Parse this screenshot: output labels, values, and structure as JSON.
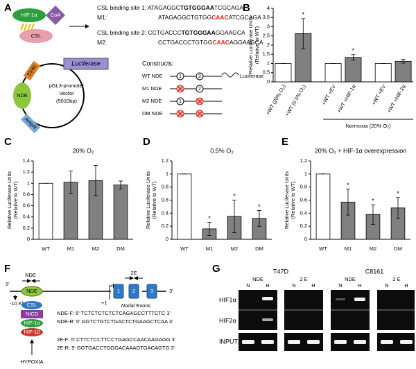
{
  "panel_a": {
    "label": "A",
    "hif": "HIF-1α",
    "coa": "CoA",
    "csl": "CSL",
    "site1": {
      "name": "CSL binding site 1:",
      "seq": [
        "ATAGAGGC",
        "TGTGGGAA",
        "TCGCAGA"
      ]
    },
    "m1": {
      "name": "M1:",
      "seq": [
        "ATAGAGGCTGTGG",
        "CAAC",
        "ATCGCAGA"
      ]
    },
    "site2": {
      "name": "CSL binding site 2:",
      "seq": [
        "CCTGACCC",
        "TGTGGGAA",
        "GGAAGCA"
      ]
    },
    "m2": {
      "name": "M2:",
      "seq": [
        "CCTGACCCTGTGG",
        "CAAC",
        "AGGAAGCA"
      ]
    },
    "vector": {
      "luciferase": "Luciferase",
      "sv40": "SV40",
      "nde": "NDE",
      "ampr": "AmpR",
      "name": "pGL3-promoter",
      "name2": "Vector",
      "size": "(5010bp)"
    },
    "constructs": {
      "title": "Constructs:",
      "rows": [
        "WT NDE",
        "M1 NDE",
        "M2 NDE",
        "DM NDE"
      ],
      "site_labels": [
        "1",
        "2"
      ],
      "luciferase": "Luciferase"
    }
  },
  "panel_f": {
    "label": "F",
    "nde": "NDE",
    "five": "5'",
    "three": "3'",
    "minus10": "-10 Kb",
    "plus1": "+1",
    "e2": "2E",
    "exons": [
      "1",
      "2",
      "3"
    ],
    "exon_caption_italic": "Nodal",
    "exon_caption": "Exons",
    "complex": [
      "CSL",
      "NICD",
      "HIF-1α",
      "HIF-1β"
    ],
    "hypoxia": "HYPOXIA",
    "primers": [
      "NDE-F: 5' TCTCTCTCTCTCAGAGCCTTTCTC 3'",
      "NDE-R: 5' GGTCTGTCTGACTCTGAAGCTCAA 3'",
      "2E-F: 5' CTTCTCCTTCCTGAGCCAACAAGAGG 3'",
      "2E-R: 5' GGTGACCTGGGACAAAGTGACAGTG 3'"
    ]
  },
  "panel_g": {
    "label": "G",
    "lines": [
      "T47D",
      "C8161"
    ],
    "regions": [
      "NDE",
      "2 E"
    ],
    "lanes": [
      "N",
      "H"
    ],
    "rows": [
      "HIF1α",
      "HIF2α",
      "INPUT"
    ]
  },
  "chart_data": [
    {
      "type": "bar",
      "label": "B",
      "ylabel": [
        "Relative Luciferase Units",
        "(Relative to WT)"
      ],
      "categories": [
        "+WT (20% O₂)",
        "+WT (0.5% O₂)",
        "+WT +EV",
        "+WT +HIF-1α",
        "+WT +EV",
        "+WT +HIF-2α"
      ],
      "values": [
        1,
        2.62,
        1,
        1.33,
        1,
        1.12
      ],
      "errors": [
        0,
        0.82,
        0,
        0.15,
        0,
        0.1
      ],
      "colors": [
        "#ffffff",
        "#808080",
        "#ffffff",
        "#808080",
        "#ffffff",
        "#808080"
      ],
      "markers": [
        null,
        "*",
        null,
        "*",
        null,
        null
      ],
      "group_label": "Normoxia (20% O₂)",
      "ylim": [
        0,
        4
      ],
      "yticks": [
        0,
        0.5,
        1,
        1.5,
        2,
        2.5,
        3,
        3.5,
        4
      ]
    },
    {
      "type": "bar",
      "label": "C",
      "title": "20% O₂",
      "ylabel": [
        "Relative Luciferase Units",
        "(Relative to WT)"
      ],
      "categories": [
        "WT",
        "M1",
        "M2",
        "DM"
      ],
      "values": [
        1,
        1.02,
        1.05,
        0.97
      ],
      "errors": [
        0,
        0.2,
        0.27,
        0.07
      ],
      "colors": [
        "#ffffff",
        "#808080",
        "#808080",
        "#808080"
      ],
      "markers": [
        null,
        null,
        null,
        null
      ],
      "ylim": [
        0,
        1.4
      ],
      "yticks": [
        0,
        0.2,
        0.4,
        0.6,
        0.8,
        1,
        1.2,
        1.4
      ]
    },
    {
      "type": "bar",
      "label": "D",
      "title": "0.5% O₂",
      "ylabel": [
        "Relative Luciferase Units",
        "(Relative to WT)"
      ],
      "categories": [
        "WT",
        "M1",
        "M2",
        "DM"
      ],
      "values": [
        1,
        0.16,
        0.35,
        0.32
      ],
      "errors": [
        0,
        0.1,
        0.25,
        0.12
      ],
      "colors": [
        "#ffffff",
        "#808080",
        "#808080",
        "#808080"
      ],
      "markers": [
        null,
        "*",
        "*",
        "*"
      ],
      "ylim": [
        0,
        1.2
      ],
      "yticks": [
        0,
        0.2,
        0.4,
        0.6,
        0.8,
        1,
        1.2
      ]
    },
    {
      "type": "bar",
      "label": "E",
      "title": "20% O₂ + HIF-1α overexpression",
      "ylabel": [
        "Relative Luciferase Units",
        "(Relative to WT)"
      ],
      "categories": [
        "WT",
        "M1",
        "M2",
        "DM"
      ],
      "values": [
        1,
        0.57,
        0.38,
        0.48
      ],
      "errors": [
        0,
        0.2,
        0.15,
        0.16
      ],
      "colors": [
        "#ffffff",
        "#808080",
        "#808080",
        "#808080"
      ],
      "markers": [
        null,
        "*",
        "*",
        "*"
      ],
      "ylim": [
        0,
        1.2
      ],
      "yticks": [
        0,
        0.2,
        0.4,
        0.6,
        0.8,
        1,
        1.2
      ]
    }
  ]
}
